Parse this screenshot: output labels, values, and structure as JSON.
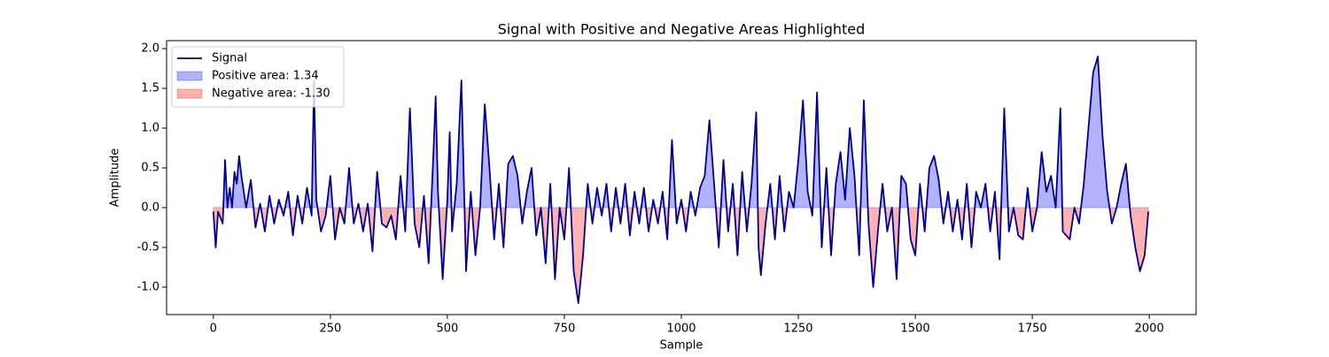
{
  "chart_data": {
    "type": "line",
    "title": "Signal with Positive and Negative Areas Highlighted",
    "xlabel": "Sample",
    "ylabel": "Amplitude",
    "x": [
      0,
      5,
      10,
      20,
      25,
      30,
      35,
      40,
      45,
      50,
      55,
      60,
      70,
      80,
      90,
      100,
      110,
      120,
      130,
      140,
      150,
      160,
      170,
      180,
      190,
      200,
      210,
      215,
      220,
      230,
      240,
      250,
      260,
      270,
      280,
      290,
      300,
      310,
      320,
      330,
      340,
      350,
      360,
      370,
      380,
      390,
      400,
      410,
      420,
      430,
      440,
      450,
      460,
      470,
      475,
      480,
      490,
      500,
      505,
      510,
      520,
      530,
      540,
      550,
      560,
      570,
      580,
      590,
      600,
      610,
      620,
      630,
      640,
      650,
      660,
      670,
      680,
      690,
      700,
      710,
      720,
      730,
      740,
      750,
      760,
      770,
      780,
      790,
      800,
      810,
      820,
      830,
      840,
      850,
      860,
      870,
      880,
      890,
      900,
      910,
      920,
      930,
      940,
      950,
      960,
      970,
      980,
      990,
      1000,
      1010,
      1020,
      1030,
      1040,
      1050,
      1060,
      1070,
      1080,
      1090,
      1100,
      1110,
      1120,
      1130,
      1140,
      1150,
      1160,
      1165,
      1170,
      1180,
      1190,
      1200,
      1210,
      1220,
      1230,
      1240,
      1250,
      1260,
      1270,
      1280,
      1290,
      1300,
      1310,
      1320,
      1330,
      1340,
      1350,
      1360,
      1370,
      1380,
      1390,
      1400,
      1410,
      1420,
      1430,
      1440,
      1450,
      1460,
      1470,
      1480,
      1490,
      1500,
      1510,
      1520,
      1530,
      1540,
      1550,
      1560,
      1570,
      1580,
      1590,
      1600,
      1610,
      1620,
      1630,
      1640,
      1650,
      1660,
      1670,
      1680,
      1690,
      1700,
      1710,
      1720,
      1730,
      1740,
      1750,
      1760,
      1770,
      1780,
      1790,
      1800,
      1810,
      1815,
      1830,
      1840,
      1850,
      1860,
      1870,
      1880,
      1890,
      1900,
      1910,
      1920,
      1930,
      1940,
      1950,
      1960,
      1970,
      1980,
      1990,
      1998
    ],
    "series": [
      {
        "name": "Signal",
        "color": "#00008b",
        "values": [
          -0.05,
          -0.5,
          -0.05,
          -0.2,
          0.6,
          0.0,
          0.25,
          0.0,
          0.45,
          0.3,
          0.65,
          0.4,
          0.0,
          0.35,
          -0.25,
          0.05,
          -0.3,
          0.15,
          -0.2,
          0.1,
          -0.1,
          0.2,
          -0.35,
          0.15,
          -0.2,
          0.25,
          -0.1,
          1.6,
          0.1,
          -0.3,
          -0.1,
          0.4,
          -0.4,
          0.0,
          -0.2,
          0.5,
          -0.2,
          0.05,
          -0.3,
          0.05,
          -0.55,
          0.45,
          -0.2,
          -0.25,
          -0.1,
          -0.4,
          0.4,
          -0.3,
          1.25,
          -0.2,
          -0.5,
          0.15,
          -0.7,
          0.65,
          1.4,
          0.2,
          -0.9,
          0.1,
          0.95,
          -0.3,
          0.3,
          1.6,
          -0.8,
          0.2,
          -0.6,
          0.0,
          1.3,
          0.5,
          -0.4,
          0.3,
          -0.5,
          0.55,
          0.65,
          0.4,
          -0.2,
          0.2,
          0.5,
          -0.35,
          0.0,
          -0.7,
          0.3,
          -0.9,
          0.0,
          -0.4,
          0.5,
          -0.8,
          -1.2,
          -0.6,
          0.3,
          -0.2,
          0.25,
          -0.1,
          0.3,
          -0.3,
          0.25,
          -0.2,
          0.3,
          -0.35,
          0.2,
          -0.2,
          0.25,
          -0.3,
          0.1,
          -0.2,
          0.2,
          -0.4,
          0.85,
          -0.2,
          0.1,
          -0.3,
          0.2,
          -0.1,
          0.25,
          0.4,
          1.1,
          0.3,
          -0.5,
          0.6,
          -0.3,
          0.3,
          -0.6,
          0.45,
          -0.3,
          0.3,
          1.2,
          -0.5,
          -0.85,
          -0.2,
          0.3,
          -0.4,
          0.4,
          -0.3,
          0.2,
          0.0,
          0.6,
          1.35,
          0.2,
          -0.1,
          1.45,
          -0.5,
          0.5,
          -0.6,
          0.3,
          0.7,
          0.1,
          1.0,
          0.4,
          -0.6,
          1.35,
          -0.2,
          -1.0,
          -0.3,
          0.3,
          -0.3,
          0.0,
          -0.9,
          0.4,
          0.3,
          -0.4,
          -0.6,
          0.3,
          -0.3,
          0.5,
          0.65,
          0.35,
          -0.2,
          0.2,
          -0.3,
          0.1,
          -0.4,
          0.3,
          -0.5,
          0.2,
          0.0,
          0.3,
          -0.3,
          0.2,
          -0.65,
          1.25,
          -0.3,
          0.0,
          -0.35,
          -0.4,
          0.25,
          -0.3,
          0.0,
          0.7,
          0.2,
          0.4,
          0.0,
          1.25,
          -0.3,
          -0.4,
          0.0,
          -0.2,
          0.3,
          1.0,
          1.7,
          1.9,
          0.9,
          0.2,
          -0.2,
          0.0,
          0.3,
          0.55,
          -0.1,
          -0.5,
          -0.8,
          -0.6,
          -0.05
        ]
      }
    ],
    "fills": [
      {
        "name": "Positive area: 1.34",
        "color": "#0000ff"
      },
      {
        "name": "Negative area: -1.30",
        "color": "#ff0000"
      }
    ],
    "xlim": [
      -100,
      2100
    ],
    "ylim": [
      -1.345,
      2.1
    ],
    "xticks": [
      0,
      250,
      500,
      750,
      1000,
      1250,
      1500,
      1750,
      2000
    ],
    "yticks": [
      {
        "value": -1.0,
        "label": "-1.0"
      },
      -0.5,
      {
        "value": 0.0,
        "label": "0.0"
      },
      0.5,
      {
        "value": 1.0,
        "label": "1.0"
      },
      1.5,
      {
        "value": 2.0,
        "label": "2.0"
      }
    ],
    "legend": "upper left"
  }
}
